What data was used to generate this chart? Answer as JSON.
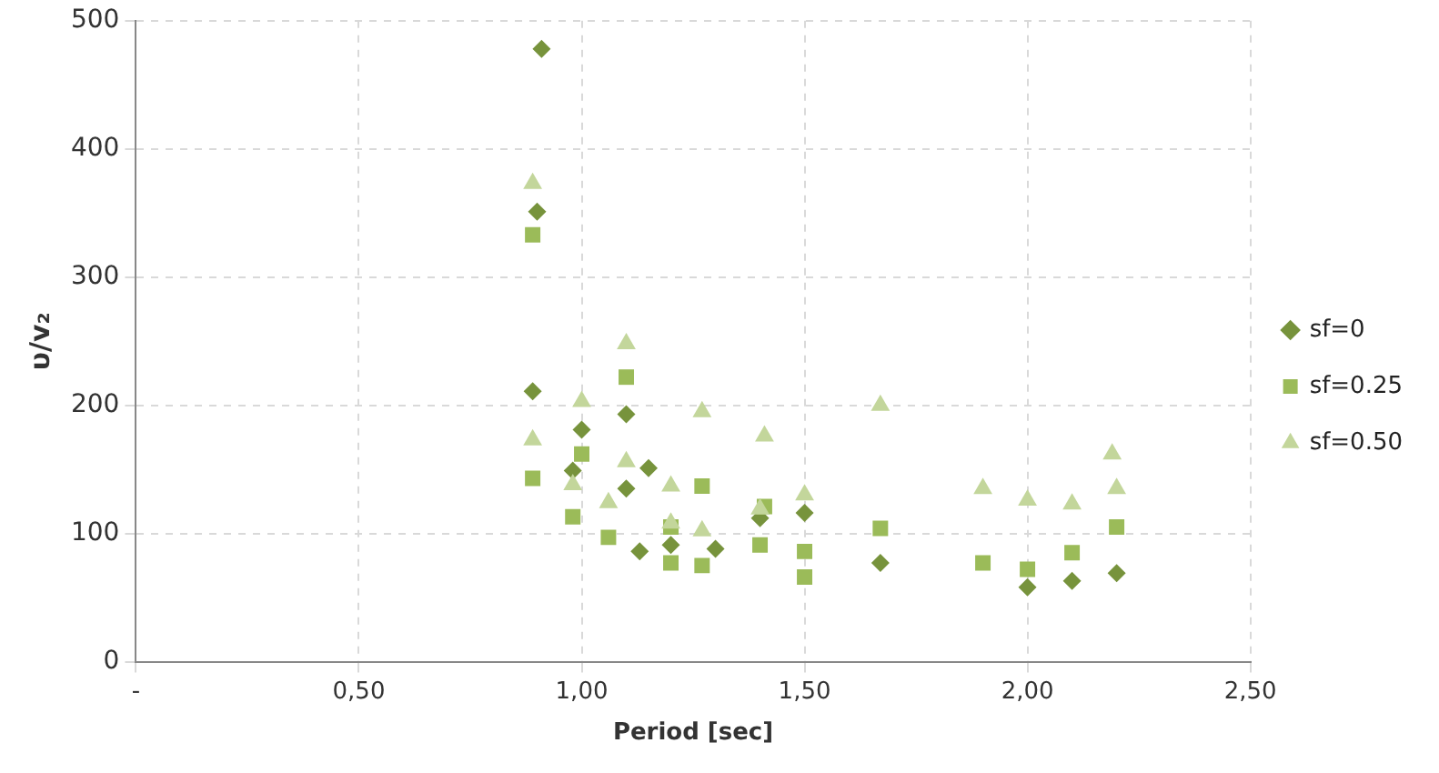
{
  "chart_data": {
    "type": "scatter",
    "xlabel": "Period [sec]",
    "ylabel": "υ/v₂",
    "xlim": [
      0,
      2.5
    ],
    "ylim": [
      0,
      500
    ],
    "xticks": [
      {
        "value": 0,
        "label": "-"
      },
      {
        "value": 0.5,
        "label": "0,50"
      },
      {
        "value": 1,
        "label": "1,00"
      },
      {
        "value": 1.5,
        "label": "1,50"
      },
      {
        "value": 2,
        "label": "2,00"
      },
      {
        "value": 2.5,
        "label": "2,50"
      }
    ],
    "yticks": [
      0,
      100,
      200,
      300,
      400,
      500
    ],
    "grid": true,
    "legend": "right",
    "series": [
      {
        "name": "sf=0",
        "color": "#77933c",
        "marker": "diamond",
        "x": [
          0.91,
          0.9,
          0.89,
          1.1,
          1.0,
          0.98,
          1.15,
          1.1,
          1.13,
          1.2,
          1.3,
          1.4,
          1.5,
          1.67,
          2.0,
          2.1,
          2.2
        ],
        "values": [
          478,
          351,
          211,
          193,
          181,
          149,
          151,
          135,
          86,
          91,
          88,
          112,
          116,
          77,
          58,
          63,
          69
        ]
      },
      {
        "name": "sf=0.25",
        "color": "#9bbb59",
        "marker": "square",
        "x": [
          0.89,
          0.89,
          1.1,
          1.0,
          0.98,
          1.06,
          1.2,
          1.2,
          1.27,
          1.27,
          1.41,
          1.4,
          1.5,
          1.5,
          1.67,
          1.9,
          2.0,
          2.1,
          2.2
        ],
        "values": [
          333,
          143,
          222,
          162,
          113,
          97,
          105,
          77,
          137,
          75,
          121,
          91,
          86,
          66,
          104,
          77,
          72,
          85,
          105
        ]
      },
      {
        "name": "sf=0.50",
        "color": "#c3d69b",
        "marker": "triangle",
        "x": [
          0.89,
          1.1,
          1.0,
          0.89,
          0.98,
          1.1,
          1.06,
          1.2,
          1.2,
          1.27,
          1.27,
          1.41,
          1.4,
          1.5,
          1.67,
          1.9,
          2.0,
          2.1,
          2.19,
          2.2
        ],
        "values": [
          373,
          248,
          203,
          173,
          138,
          156,
          124,
          137,
          108,
          195,
          102,
          176,
          119,
          130,
          200,
          135,
          126,
          123,
          162,
          135
        ]
      }
    ]
  }
}
